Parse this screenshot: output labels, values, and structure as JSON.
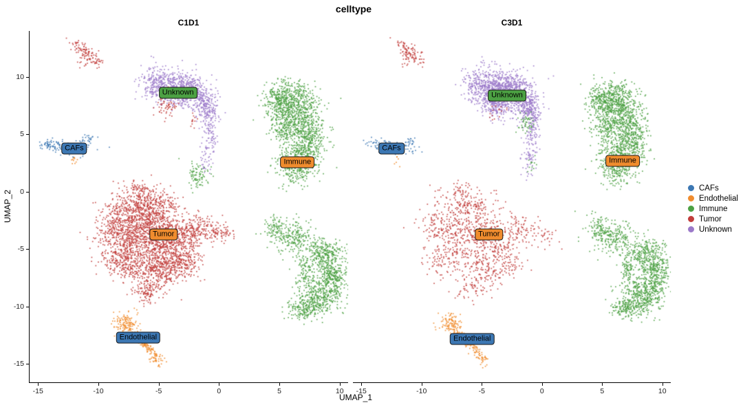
{
  "chart_data": {
    "type": "scatter",
    "title": "celltype",
    "xlabel": "UMAP_1",
    "ylabel": "UMAP_2",
    "xlim": [
      -15.7,
      10.7
    ],
    "ylim": [
      -16.6,
      14.0
    ],
    "xticks": [
      -15,
      -10,
      -5,
      0,
      5,
      10
    ],
    "yticks": [
      10,
      5,
      0,
      -5,
      -10,
      -15
    ],
    "grid": false,
    "legend_position": "right",
    "point_size": 1.7,
    "palette": {
      "CAFs": "#3C77B3",
      "Endothelial": "#F08C2E",
      "Immune": "#4CA143",
      "Tumor": "#C23D3B",
      "Unknown": "#9B79C9"
    },
    "legend_items": [
      {
        "label": "CAFs",
        "color": "#3C77B3"
      },
      {
        "label": "Endothelial",
        "color": "#F08C2E"
      },
      {
        "label": "Immune",
        "color": "#4CA143"
      },
      {
        "label": "Tumor",
        "color": "#C23D3B"
      },
      {
        "label": "Unknown",
        "color": "#9B79C9"
      }
    ],
    "blob_fields": [
      "celltype",
      "x",
      "y",
      "sx",
      "sy",
      "n",
      "rot"
    ],
    "facets": [
      {
        "title": "C1D1",
        "labels": [
          {
            "text": "Unknown",
            "x": -3.4,
            "y": 8.6,
            "fill": "#4CA143"
          },
          {
            "text": "CAFs",
            "x": -12.0,
            "y": 3.75,
            "fill": "#3C77B3"
          },
          {
            "text": "Immune",
            "x": 6.5,
            "y": 2.55,
            "fill": "#F08C2E"
          },
          {
            "text": "Tumor",
            "x": -4.6,
            "y": -3.75,
            "fill": "#F08C2E"
          },
          {
            "text": "Endothelial",
            "x": -6.7,
            "y": -12.7,
            "fill": "#3C77B3"
          }
        ],
        "blobs": [
          [
            "Tumor",
            -11.0,
            12.1,
            0.75,
            0.28,
            110,
            -40
          ],
          [
            "Tumor",
            -11.3,
            11.3,
            0.3,
            0.3,
            12,
            0
          ],
          [
            "Unknown",
            -4.6,
            9.3,
            1.0,
            0.75,
            420,
            -15
          ],
          [
            "Unknown",
            -2.6,
            8.9,
            0.8,
            0.7,
            320,
            0
          ],
          [
            "Unknown",
            -1.2,
            7.6,
            0.55,
            0.8,
            220,
            20
          ],
          [
            "Unknown",
            -0.7,
            5.6,
            0.3,
            1.0,
            90,
            0
          ],
          [
            "Unknown",
            -1.0,
            3.2,
            0.35,
            0.8,
            45,
            0
          ],
          [
            "Tumor",
            -4.4,
            7.3,
            0.5,
            0.6,
            55,
            0
          ],
          [
            "Tumor",
            -3.2,
            8.6,
            0.4,
            0.3,
            18,
            0
          ],
          [
            "Tumor",
            -2.0,
            6.0,
            0.25,
            0.4,
            12,
            0
          ],
          [
            "Immune",
            -1.75,
            1.4,
            0.5,
            0.55,
            85,
            0
          ],
          [
            "CAFs",
            -12.8,
            3.9,
            1.05,
            0.3,
            130,
            -8
          ],
          [
            "CAFs",
            -10.9,
            4.5,
            0.35,
            0.25,
            25,
            0
          ],
          [
            "CAFs",
            -14.3,
            4.1,
            0.25,
            0.2,
            15,
            0
          ],
          [
            "Endothelial",
            -12.0,
            2.8,
            0.15,
            0.45,
            10,
            0
          ],
          [
            "Immune",
            6.3,
            7.2,
            1.0,
            1.0,
            550,
            0
          ],
          [
            "Immune",
            7.3,
            4.6,
            0.75,
            1.2,
            450,
            0
          ],
          [
            "Immune",
            6.3,
            2.4,
            0.8,
            0.9,
            330,
            0
          ],
          [
            "Immune",
            4.9,
            7.9,
            0.55,
            0.6,
            160,
            0
          ],
          [
            "Immune",
            5.6,
            9.0,
            0.8,
            0.4,
            70,
            0
          ],
          [
            "Immune",
            5.3,
            5.5,
            0.5,
            0.8,
            120,
            0
          ],
          [
            "Tumor",
            -6.2,
            -1.2,
            1.3,
            0.75,
            420,
            0
          ],
          [
            "Tumor",
            -6.8,
            -3.3,
            1.6,
            1.1,
            750,
            0
          ],
          [
            "Tumor",
            -4.3,
            -4.4,
            1.3,
            1.2,
            650,
            0
          ],
          [
            "Tumor",
            -7.8,
            -5.9,
            1.0,
            0.9,
            330,
            0
          ],
          [
            "Tumor",
            -4.9,
            -7.0,
            1.0,
            0.75,
            300,
            0
          ],
          [
            "Tumor",
            -2.0,
            -3.3,
            1.0,
            0.55,
            190,
            10
          ],
          [
            "Tumor",
            0.2,
            -3.7,
            0.55,
            0.35,
            60,
            15
          ],
          [
            "Tumor",
            -3.0,
            -6.2,
            0.8,
            0.65,
            180,
            0
          ],
          [
            "Tumor",
            -5.9,
            -8.7,
            0.6,
            0.5,
            110,
            0
          ],
          [
            "Tumor",
            -8.8,
            -3.0,
            0.5,
            0.8,
            90,
            0
          ],
          [
            "Tumor",
            -6.6,
            0.3,
            0.5,
            0.35,
            60,
            0
          ],
          [
            "Immune",
            5.9,
            -3.8,
            0.95,
            0.7,
            240,
            -10
          ],
          [
            "Immune",
            4.6,
            -3.0,
            0.4,
            0.5,
            50,
            0
          ],
          [
            "Immune",
            8.7,
            -5.5,
            0.85,
            0.75,
            300,
            0
          ],
          [
            "Immune",
            9.4,
            -7.3,
            0.6,
            0.85,
            260,
            0
          ],
          [
            "Immune",
            8.3,
            -9.2,
            0.95,
            0.8,
            380,
            0
          ],
          [
            "Immune",
            6.9,
            -10.2,
            0.6,
            0.45,
            130,
            0
          ],
          [
            "Immune",
            7.1,
            -7.0,
            0.3,
            0.8,
            70,
            0
          ],
          [
            "Endothelial",
            -7.6,
            -11.5,
            0.55,
            0.4,
            130,
            -20
          ],
          [
            "Endothelial",
            -6.2,
            -13.3,
            0.9,
            0.18,
            130,
            -42
          ],
          [
            "Endothelial",
            -5.1,
            -14.6,
            0.3,
            0.25,
            30,
            0
          ]
        ]
      },
      {
        "title": "C3D1",
        "labels": [
          {
            "text": "Unknown",
            "x": -2.9,
            "y": 8.4,
            "fill": "#4CA143"
          },
          {
            "text": "CAFs",
            "x": -12.5,
            "y": 3.75,
            "fill": "#3C77B3"
          },
          {
            "text": "Immune",
            "x": 6.7,
            "y": 2.7,
            "fill": "#F08C2E"
          },
          {
            "text": "Tumor",
            "x": -4.4,
            "y": -3.7,
            "fill": "#F08C2E"
          },
          {
            "text": "Endothelial",
            "x": -5.8,
            "y": -12.8,
            "fill": "#3C77B3"
          }
        ],
        "blobs": [
          [
            "Tumor",
            -11.0,
            12.1,
            0.75,
            0.28,
            100,
            -40
          ],
          [
            "Tumor",
            -11.3,
            11.3,
            0.3,
            0.3,
            10,
            0
          ],
          [
            "Unknown",
            -4.5,
            9.2,
            1.05,
            0.8,
            500,
            -15
          ],
          [
            "Unknown",
            -2.5,
            8.9,
            0.9,
            0.8,
            450,
            0
          ],
          [
            "Unknown",
            -3.5,
            7.6,
            0.8,
            0.6,
            250,
            0
          ],
          [
            "Unknown",
            -1.2,
            7.5,
            0.55,
            0.8,
            230,
            20
          ],
          [
            "Unknown",
            -0.7,
            5.5,
            0.3,
            1.1,
            110,
            0
          ],
          [
            "Unknown",
            -1.0,
            3.1,
            0.35,
            0.9,
            60,
            0
          ],
          [
            "Tumor",
            -3.8,
            7.0,
            0.4,
            0.4,
            15,
            0
          ],
          [
            "Immune",
            -1.4,
            6.0,
            0.35,
            0.45,
            45,
            0
          ],
          [
            "Immune",
            -0.9,
            2.3,
            0.2,
            0.3,
            12,
            0
          ],
          [
            "CAFs",
            -12.6,
            3.9,
            0.95,
            0.28,
            105,
            -8
          ],
          [
            "CAFs",
            -10.9,
            4.4,
            0.3,
            0.22,
            18,
            0
          ],
          [
            "Endothelial",
            -12.0,
            2.7,
            0.12,
            0.35,
            7,
            0
          ],
          [
            "Immune",
            6.3,
            7.2,
            1.0,
            1.0,
            550,
            0
          ],
          [
            "Immune",
            7.3,
            4.6,
            0.75,
            1.2,
            450,
            0
          ],
          [
            "Immune",
            6.3,
            2.4,
            0.8,
            0.9,
            330,
            0
          ],
          [
            "Immune",
            4.9,
            7.9,
            0.55,
            0.6,
            160,
            0
          ],
          [
            "Immune",
            5.6,
            9.0,
            0.8,
            0.4,
            70,
            0
          ],
          [
            "Immune",
            5.3,
            5.5,
            0.5,
            0.8,
            120,
            0
          ],
          [
            "Tumor",
            -6.2,
            -1.2,
            1.3,
            0.8,
            160,
            0
          ],
          [
            "Tumor",
            -6.8,
            -3.3,
            1.6,
            1.1,
            280,
            0
          ],
          [
            "Tumor",
            -4.3,
            -4.4,
            1.3,
            1.2,
            250,
            0
          ],
          [
            "Tumor",
            -7.8,
            -5.9,
            1.0,
            0.9,
            120,
            0
          ],
          [
            "Tumor",
            -4.9,
            -7.0,
            1.0,
            0.8,
            110,
            0
          ],
          [
            "Tumor",
            -2.0,
            -3.3,
            1.0,
            0.6,
            80,
            10
          ],
          [
            "Tumor",
            0.3,
            -3.9,
            0.6,
            0.4,
            30,
            15
          ],
          [
            "Tumor",
            -3.0,
            -6.2,
            0.8,
            0.7,
            70,
            0
          ],
          [
            "Tumor",
            -5.9,
            -8.7,
            0.6,
            0.5,
            40,
            0
          ],
          [
            "Tumor",
            -8.8,
            -3.0,
            0.5,
            0.8,
            35,
            0
          ],
          [
            "Tumor",
            -6.6,
            0.3,
            0.5,
            0.35,
            25,
            0
          ],
          [
            "Immune",
            5.9,
            -3.8,
            0.95,
            0.7,
            240,
            -10
          ],
          [
            "Immune",
            4.6,
            -3.0,
            0.4,
            0.5,
            50,
            0
          ],
          [
            "Immune",
            8.7,
            -5.5,
            0.85,
            0.75,
            300,
            0
          ],
          [
            "Immune",
            9.4,
            -7.3,
            0.6,
            0.85,
            260,
            0
          ],
          [
            "Immune",
            8.3,
            -9.2,
            0.95,
            0.8,
            380,
            0
          ],
          [
            "Immune",
            6.9,
            -10.2,
            0.6,
            0.45,
            130,
            0
          ],
          [
            "Immune",
            7.1,
            -7.0,
            0.3,
            0.8,
            70,
            0
          ],
          [
            "Endothelial",
            -7.5,
            -11.5,
            0.5,
            0.38,
            110,
            -20
          ],
          [
            "Endothelial",
            -6.1,
            -13.2,
            0.9,
            0.18,
            120,
            -42
          ],
          [
            "Endothelial",
            -5.0,
            -14.6,
            0.3,
            0.25,
            25,
            0
          ]
        ]
      }
    ]
  }
}
